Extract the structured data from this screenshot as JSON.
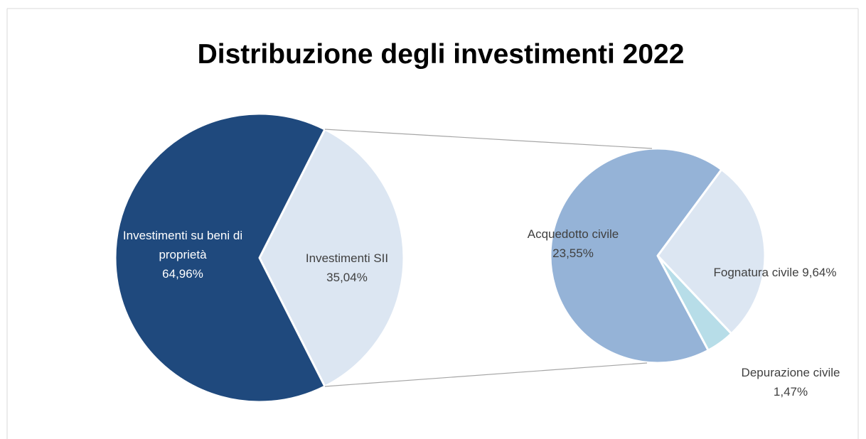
{
  "chart_data": [
    {
      "type": "pie",
      "title": "Distribuzione degli investimenti 2022",
      "categories": [
        "Investimenti su beni di proprietà",
        "Investimenti SII"
      ],
      "values": [
        64.96,
        35.04
      ],
      "value_labels": [
        "64,96%",
        "35,04%"
      ],
      "colors": [
        "#1f497d",
        "#dce6f2"
      ]
    },
    {
      "type": "pie",
      "categories": [
        "Acquedotto civile",
        "Fognatura civile",
        "Depurazione civile"
      ],
      "values": [
        23.55,
        9.64,
        1.47
      ],
      "value_labels": [
        "23,55%",
        "9,64%",
        "1,47%"
      ],
      "colors": [
        "#95b3d7",
        "#dce6f2",
        "#b7dde8"
      ]
    }
  ]
}
